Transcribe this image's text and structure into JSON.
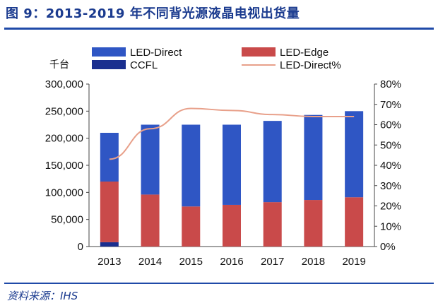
{
  "figure": {
    "title": "图 9：2013-2019 年不同背光源液晶电视出货量",
    "source": "资料来源：IHS"
  },
  "chart_data": {
    "type": "bar",
    "stacked": true,
    "y_unit_label": "千台",
    "categories": [
      "2013",
      "2014",
      "2015",
      "2016",
      "2017",
      "2018",
      "2019"
    ],
    "series": [
      {
        "name": "CCFL",
        "kind": "bar",
        "axis": "left",
        "color": "#1a2f8f",
        "values": [
          8000,
          0,
          0,
          0,
          0,
          0,
          0
        ]
      },
      {
        "name": "LED-Edge",
        "kind": "bar",
        "axis": "left",
        "color": "#c94a4a",
        "values": [
          112000,
          96000,
          74000,
          77000,
          82000,
          86000,
          91000
        ]
      },
      {
        "name": "LED-Direct",
        "kind": "bar",
        "axis": "left",
        "color": "#2f56c4",
        "values": [
          90000,
          129000,
          151000,
          148000,
          150000,
          157000,
          159000
        ]
      },
      {
        "name": "LED-Direct%",
        "kind": "line",
        "axis": "right",
        "color": "#e8a08a",
        "values": [
          0.43,
          0.58,
          0.68,
          0.67,
          0.65,
          0.64,
          0.64
        ]
      }
    ],
    "left_axis": {
      "min": 0,
      "max": 300000,
      "ticks": [
        "0",
        "50,000",
        "100,000",
        "150,000",
        "200,000",
        "250,000",
        "300,000"
      ]
    },
    "right_axis": {
      "min": 0,
      "max": 0.8,
      "ticks": [
        "0%",
        "10%",
        "20%",
        "30%",
        "40%",
        "50%",
        "60%",
        "70%",
        "80%"
      ]
    },
    "legend": {
      "placement": "top",
      "items": [
        "LED-Direct",
        "LED-Edge",
        "CCFL",
        "LED-Direct%"
      ]
    },
    "grid": false
  }
}
